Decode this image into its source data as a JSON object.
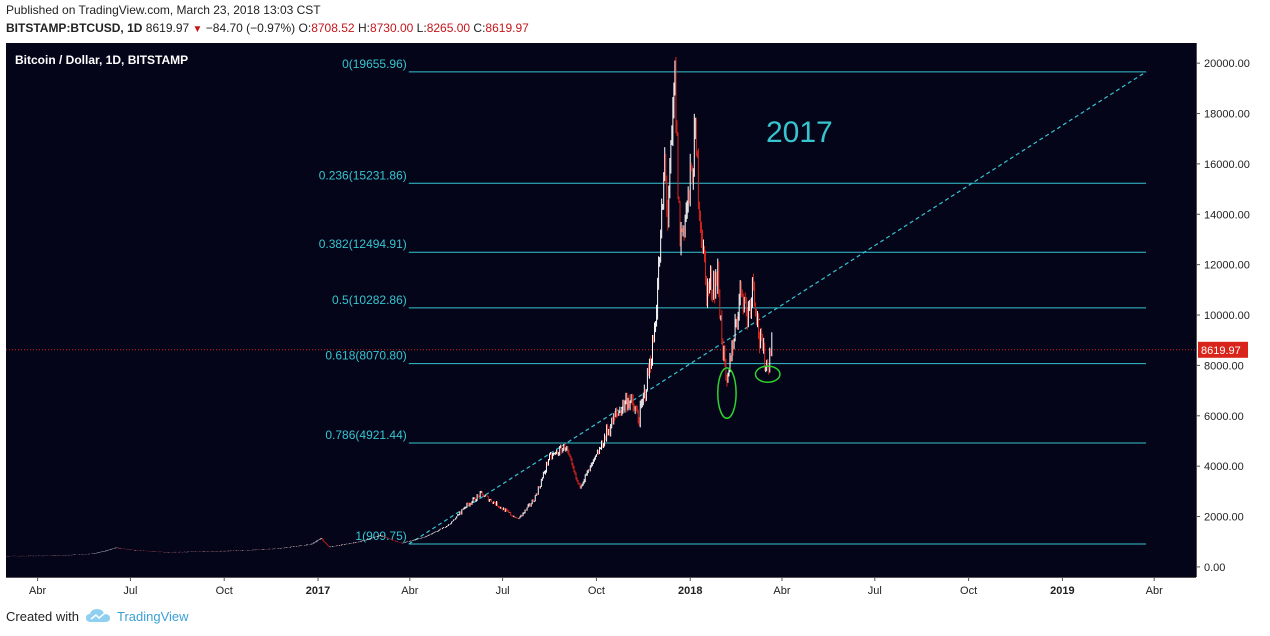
{
  "header": {
    "published": "Published on TradingView.com, March 23, 2018 13:03 CST",
    "symbol": "BITSTAMP:BTCUSD, 1D",
    "last": "8619.97",
    "change": "−84.70 (−0.97%)",
    "o_label": "O:",
    "o_value": "8708.52",
    "h_label": "H:",
    "h_value": "8730.00",
    "l_label": "L:",
    "l_value": "8265.00",
    "c_label": "C:",
    "c_value": "8619.97"
  },
  "chart_title": "Bitcoin / Dollar, 1D, BITSTAMP",
  "annotation": "2017",
  "price_marker": "8619.97",
  "footer": {
    "created_with": "Created with",
    "brand": "TradingView"
  },
  "colors": {
    "background": "#05051a",
    "fib": "#36c5cf",
    "trendline": "#36c5cf",
    "up": "#ffffff",
    "down": "#d9241b",
    "highlight": "#2fd12f",
    "price_line": "#d9241b"
  },
  "chart_data": {
    "type": "candlestick",
    "title": "Bitcoin / Dollar, 1D, BITSTAMP",
    "ylim": [
      -400,
      20800
    ],
    "y_ticks": [
      0,
      2000,
      4000,
      6000,
      8000,
      10000,
      12000,
      14000,
      16000,
      18000,
      20000
    ],
    "y_tick_labels": [
      "0.00",
      "2000.00",
      "4000.00",
      "6000.00",
      "8000.00",
      "10000.00",
      "12000.00",
      "14000.00",
      "16000.00",
      "18000.00",
      "20000.00"
    ],
    "x_ticks": [
      {
        "label": "Abr",
        "bold": false,
        "date": "2016-04-01"
      },
      {
        "label": "Jul",
        "bold": false,
        "date": "2016-07-01"
      },
      {
        "label": "Oct",
        "bold": false,
        "date": "2016-10-01"
      },
      {
        "label": "2017",
        "bold": true,
        "date": "2017-01-01"
      },
      {
        "label": "Abr",
        "bold": false,
        "date": "2017-04-01"
      },
      {
        "label": "Jul",
        "bold": false,
        "date": "2017-07-01"
      },
      {
        "label": "Oct",
        "bold": false,
        "date": "2017-10-01"
      },
      {
        "label": "2018",
        "bold": true,
        "date": "2018-01-01"
      },
      {
        "label": "Abr",
        "bold": false,
        "date": "2018-04-01"
      },
      {
        "label": "Jul",
        "bold": false,
        "date": "2018-07-01"
      },
      {
        "label": "Oct",
        "bold": false,
        "date": "2018-10-01"
      },
      {
        "label": "2019",
        "bold": true,
        "date": "2019-01-01"
      },
      {
        "label": "Abr",
        "bold": false,
        "date": "2019-04-01"
      }
    ],
    "fib_levels": [
      {
        "label": "0(19655.96)",
        "value": 19655.96
      },
      {
        "label": "0.236(15231.86)",
        "value": 15231.86
      },
      {
        "label": "0.382(12494.91)",
        "value": 12494.91
      },
      {
        "label": "0.5(10282.86)",
        "value": 10282.86
      },
      {
        "label": "0.618(8070.80)",
        "value": 8070.8
      },
      {
        "label": "0.786(4921.44)",
        "value": 4921.44
      },
      {
        "label": "1(909.75)",
        "value": 909.75
      }
    ],
    "fib_range": {
      "start": "2017-03-31",
      "end": "2019-03-24"
    },
    "trendline": {
      "start": {
        "date": "2017-03-31",
        "value": 909.75
      },
      "end": {
        "date": "2019-03-24",
        "value": 19655.96
      }
    },
    "current_price": 8619.97,
    "highlights": [
      {
        "center_date": "2018-02-06",
        "center_value": 6900,
        "half_days": 9,
        "half_value": 1000
      },
      {
        "center_date": "2018-03-18",
        "center_value": 7650,
        "half_days": 12,
        "half_value": 320
      }
    ],
    "price_path": [
      [
        "2016-03-01",
        430
      ],
      [
        "2016-04-15",
        440
      ],
      [
        "2016-05-25",
        520
      ],
      [
        "2016-06-17",
        760
      ],
      [
        "2016-07-05",
        660
      ],
      [
        "2016-08-05",
        580
      ],
      [
        "2016-09-15",
        610
      ],
      [
        "2016-10-25",
        660
      ],
      [
        "2016-11-25",
        740
      ],
      [
        "2016-12-25",
        900
      ],
      [
        "2017-01-04",
        1140
      ],
      [
        "2017-01-12",
        790
      ],
      [
        "2017-02-10",
        1000
      ],
      [
        "2017-03-03",
        1260
      ],
      [
        "2017-03-24",
        940
      ],
      [
        "2017-04-15",
        1180
      ],
      [
        "2017-05-10",
        1700
      ],
      [
        "2017-05-25",
        2400
      ],
      [
        "2017-06-10",
        2900
      ],
      [
        "2017-06-25",
        2500
      ],
      [
        "2017-07-16",
        1900
      ],
      [
        "2017-08-01",
        2700
      ],
      [
        "2017-08-15",
        4300
      ],
      [
        "2017-09-01",
        4800
      ],
      [
        "2017-09-14",
        3200
      ],
      [
        "2017-09-30",
        4300
      ],
      [
        "2017-10-12",
        5400
      ],
      [
        "2017-10-20",
        6000
      ],
      [
        "2017-11-01",
        6700
      ],
      [
        "2017-11-12",
        5900
      ],
      [
        "2017-11-26",
        9000
      ],
      [
        "2017-12-07",
        16000
      ],
      [
        "2017-12-10",
        14000
      ],
      [
        "2017-12-17",
        19400
      ],
      [
        "2017-12-22",
        13000
      ],
      [
        "2017-12-30",
        14500
      ],
      [
        "2018-01-06",
        17000
      ],
      [
        "2018-01-17",
        11000
      ],
      [
        "2018-01-28",
        11500
      ],
      [
        "2018-02-06",
        7000
      ],
      [
        "2018-02-10",
        8500
      ],
      [
        "2018-02-20",
        11200
      ],
      [
        "2018-02-26",
        10000
      ],
      [
        "2018-03-04",
        11400
      ],
      [
        "2018-03-10",
        9000
      ],
      [
        "2018-03-18",
        7900
      ],
      [
        "2018-03-21",
        8900
      ],
      [
        "2018-03-23",
        8619.97
      ]
    ]
  }
}
